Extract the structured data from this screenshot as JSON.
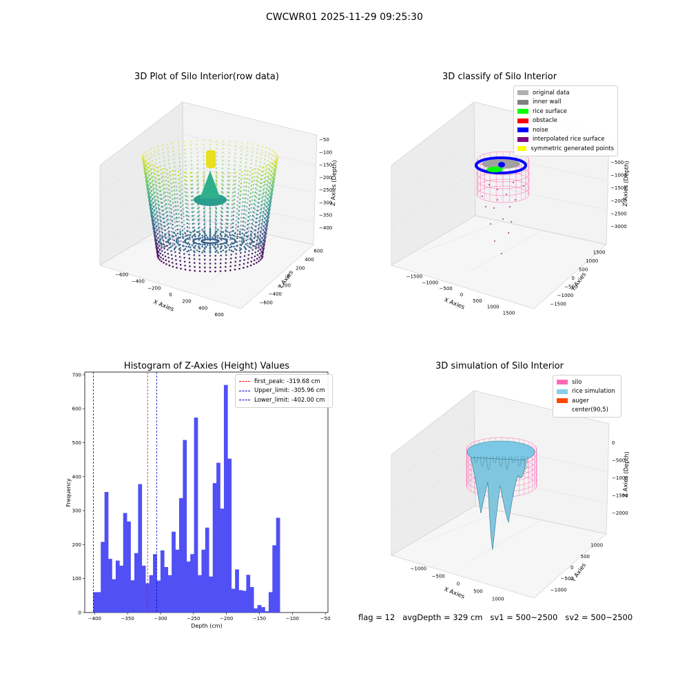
{
  "suptitle": "CWCWR01 2025-11-29 09:25:30",
  "footer": {
    "flag": "flag = 12",
    "avg_depth": "avgDepth = 329 cm",
    "sv1": "sv1 = 500~2500",
    "sv2": "sv2 = 500~2500"
  },
  "chart_data": [
    {
      "type": "scatter",
      "title": "3D Plot of Silo Interior(row data)",
      "xlabel": "X Axies",
      "ylabel": "Y Axies",
      "zlabel": "Z Axies (Depth)",
      "x_ticks": [
        "−600",
        "−400",
        "−200",
        "0",
        "200",
        "400",
        "600"
      ],
      "y_ticks": [
        "−600",
        "−400",
        "−200",
        "0",
        "200",
        "400",
        "600"
      ],
      "z_ticks": [
        "−50",
        "−100",
        "−150",
        "−200",
        "−250",
        "−300",
        "−350",
        "−400"
      ],
      "xlim": [
        -650,
        650
      ],
      "ylim": [
        -650,
        650
      ],
      "zlim": [
        -420,
        -40
      ],
      "colormap": "viridis",
      "silo_radius_cm": 500,
      "colors": {
        "top": "#d4e34a",
        "mid": "#2a9d8f",
        "bottom": "#46176a"
      }
    },
    {
      "type": "scatter",
      "title": "3D classify of Silo Interior",
      "x_ticks": [
        "−1500",
        "−1000",
        "−500",
        "0",
        "500",
        "1000",
        "1500"
      ],
      "y_ticks": [
        "−1500",
        "−1000",
        "−500",
        "0",
        "500",
        "1000",
        "1500"
      ],
      "z_ticks": [
        "−500",
        "−1000",
        "−1500",
        "−2000",
        "−2500",
        "−3000"
      ],
      "xlabel": "X Axies",
      "ylabel": "Y Axies",
      "zlabel": "Z Axies (Depth)",
      "xlim": [
        -1700,
        1700
      ],
      "ylim": [
        -1700,
        1700
      ],
      "zlim": [
        -3200,
        -100
      ],
      "legend": [
        {
          "label": "original data",
          "color": "#b0b0b0"
        },
        {
          "label": "inner wall",
          "color": "#808080"
        },
        {
          "label": "rice surface",
          "color": "#00ff00"
        },
        {
          "label": "obstacle",
          "color": "#ff0000"
        },
        {
          "label": "noise",
          "color": "#0000ff"
        },
        {
          "label": "interpolated rice surface",
          "color": "#800080"
        },
        {
          "label": "symmetric generated points",
          "color": "#ffff00"
        }
      ]
    },
    {
      "type": "bar",
      "title": "Histogram of Z-Axies (Height) Values",
      "xlabel": "Depth (cm)",
      "ylabel": "Frequency",
      "xlim": [
        -415,
        -46
      ],
      "ylim": [
        0,
        708
      ],
      "x_ticks": [
        -400,
        -350,
        -300,
        -250,
        -200,
        -150,
        -100,
        -50
      ],
      "y_ticks": [
        0,
        100,
        200,
        300,
        400,
        500,
        600,
        700
      ],
      "bin_start": -402,
      "bin_width": 5.66,
      "values": [
        60,
        60,
        208,
        355,
        158,
        98,
        153,
        138,
        293,
        268,
        95,
        175,
        378,
        138,
        86,
        110,
        172,
        94,
        183,
        134,
        110,
        238,
        185,
        337,
        508,
        150,
        172,
        574,
        110,
        185,
        250,
        106,
        381,
        441,
        306,
        670,
        453,
        70,
        127,
        66,
        64,
        111,
        75,
        12,
        22,
        16,
        4,
        60,
        198,
        279
      ],
      "bar_color": "#5050f5",
      "vlines": [
        {
          "label": "first_peak: -319.68 cm",
          "x": -319.68,
          "color": "#ff0000"
        },
        {
          "label": "Upper_limit: -305.96 cm",
          "x": -305.96,
          "color": "#0000bb"
        },
        {
          "label": "Lower_limit: -402.00 cm",
          "x": -402.0,
          "color": "#0000bb"
        }
      ]
    },
    {
      "type": "area",
      "title": "3D simulation of Silo Interior",
      "xlabel": "X Axies",
      "ylabel": "Y Axies",
      "zlabel": "Z Axies (Depth)",
      "x_ticks": [
        "−1000",
        "−500",
        "0",
        "500",
        "1000"
      ],
      "y_ticks": [
        "−1000",
        "−500",
        "0",
        "500",
        "1000"
      ],
      "z_ticks": [
        "0",
        "−500",
        "−1000",
        "−1500",
        "−2000"
      ],
      "xlim": [
        -1300,
        1300
      ],
      "ylim": [
        -1300,
        1300
      ],
      "zlim": [
        -2300,
        300
      ],
      "legend": [
        {
          "label": "silo",
          "color": "#ff69b4"
        },
        {
          "label": "rice simulation",
          "color": "#87ceeb"
        },
        {
          "label": "auger",
          "color": "#ff4500"
        },
        {
          "label": "center(90,5)",
          "color": ""
        }
      ]
    }
  ]
}
